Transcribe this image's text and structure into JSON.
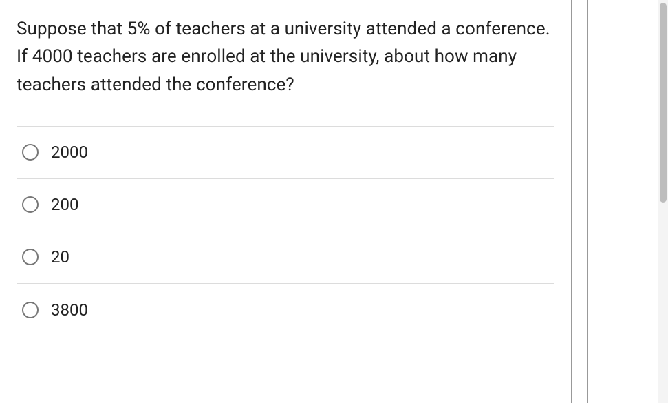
{
  "question": {
    "text": "Suppose that 5% of teachers at a university attended a conference. If 4000 teachers are enrolled at the university, about how many teachers attended the conference?",
    "options": [
      {
        "label": "2000"
      },
      {
        "label": "200"
      },
      {
        "label": "20"
      },
      {
        "label": "3800"
      }
    ]
  },
  "style": {
    "question_fontsize": 26,
    "option_fontsize": 24,
    "text_color": "#222222",
    "divider_color": "#dcdcdc",
    "panel_border_color": "#999999",
    "radio_border_color": "#777777",
    "scrollbar_track": "#f4f4f4",
    "scrollbar_thumb": "#bdbdbd",
    "background": "#ffffff"
  }
}
